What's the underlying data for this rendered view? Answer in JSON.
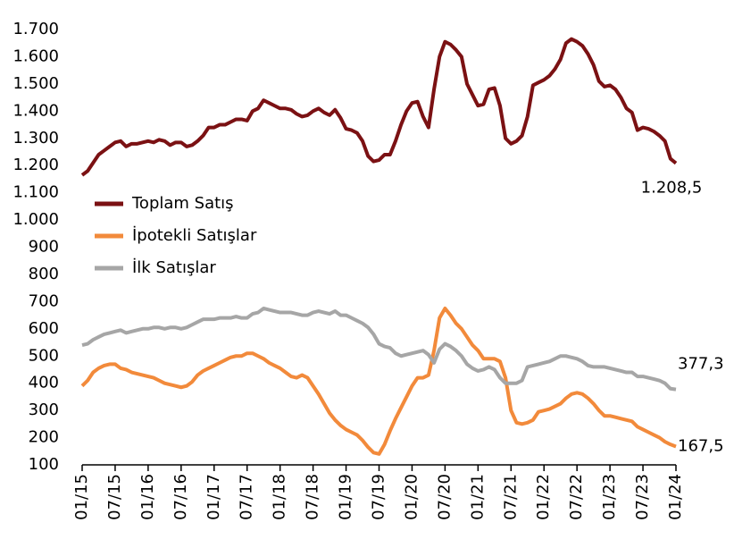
{
  "chart_data": {
    "type": "line",
    "categories": [
      "01/15",
      null,
      null,
      null,
      null,
      null,
      "07/15",
      null,
      null,
      null,
      null,
      null,
      "01/16",
      null,
      null,
      null,
      null,
      null,
      "07/16",
      null,
      null,
      null,
      null,
      null,
      "01/17",
      null,
      null,
      null,
      null,
      null,
      "07/17",
      null,
      null,
      null,
      null,
      null,
      "01/18",
      null,
      null,
      null,
      null,
      null,
      "07/18",
      null,
      null,
      null,
      null,
      null,
      "01/19",
      null,
      null,
      null,
      null,
      null,
      "07/19",
      null,
      null,
      null,
      null,
      null,
      "01/20",
      null,
      null,
      null,
      null,
      null,
      "07/20",
      null,
      null,
      null,
      null,
      null,
      "01/21",
      null,
      null,
      null,
      null,
      null,
      "07/21",
      null,
      null,
      null,
      null,
      null,
      "01/22",
      null,
      null,
      null,
      null,
      null,
      "07/22",
      null,
      null,
      null,
      null,
      null,
      "01/23",
      null,
      null,
      null,
      null,
      null,
      "07/23",
      null,
      null,
      null,
      null,
      null,
      "01/24"
    ],
    "series": [
      {
        "name": "Toplam Satış",
        "color": "#7b1113",
        "values": [
          1165,
          1180,
          1210,
          1240,
          1255,
          1270,
          1285,
          1290,
          1270,
          1280,
          1280,
          1285,
          1290,
          1285,
          1295,
          1290,
          1275,
          1285,
          1285,
          1270,
          1275,
          1290,
          1310,
          1340,
          1340,
          1350,
          1350,
          1360,
          1370,
          1370,
          1365,
          1400,
          1410,
          1440,
          1430,
          1420,
          1410,
          1410,
          1405,
          1390,
          1380,
          1385,
          1400,
          1410,
          1395,
          1385,
          1405,
          1375,
          1335,
          1330,
          1320,
          1290,
          1235,
          1215,
          1220,
          1240,
          1240,
          1290,
          1350,
          1400,
          1430,
          1435,
          1380,
          1340,
          1480,
          1600,
          1655,
          1645,
          1625,
          1600,
          1500,
          1460,
          1420,
          1425,
          1480,
          1485,
          1420,
          1300,
          1280,
          1290,
          1310,
          1380,
          1495,
          1505,
          1515,
          1530,
          1555,
          1590,
          1650,
          1665,
          1655,
          1640,
          1610,
          1570,
          1510,
          1490,
          1495,
          1480,
          1450,
          1410,
          1395,
          1330,
          1340,
          1335,
          1325,
          1310,
          1290,
          1225,
          1208.5
        ],
        "value_labels": {
          "108": "1.208,5"
        }
      },
      {
        "name": "İpotekli Satışlar",
        "color": "#f28a3b",
        "values": [
          390,
          410,
          440,
          455,
          465,
          470,
          470,
          455,
          450,
          440,
          435,
          430,
          425,
          420,
          410,
          400,
          395,
          390,
          385,
          390,
          405,
          430,
          445,
          455,
          465,
          475,
          485,
          495,
          500,
          500,
          510,
          510,
          500,
          490,
          475,
          465,
          455,
          440,
          425,
          420,
          430,
          420,
          390,
          360,
          325,
          290,
          265,
          245,
          230,
          220,
          210,
          190,
          165,
          145,
          140,
          175,
          225,
          270,
          310,
          350,
          390,
          420,
          420,
          430,
          520,
          640,
          675,
          650,
          620,
          600,
          570,
          540,
          520,
          490,
          490,
          490,
          480,
          420,
          300,
          255,
          250,
          255,
          265,
          295,
          300,
          305,
          315,
          325,
          345,
          360,
          365,
          360,
          345,
          325,
          300,
          280,
          280,
          275,
          270,
          265,
          260,
          240,
          230,
          220,
          210,
          200,
          185,
          175,
          167.5
        ],
        "value_labels": {
          "108": "167,5"
        }
      },
      {
        "name": "İlk Satışlar",
        "color": "#a6a6a6",
        "values": [
          540,
          545,
          560,
          570,
          580,
          585,
          590,
          595,
          585,
          590,
          595,
          600,
          600,
          605,
          605,
          600,
          605,
          605,
          600,
          605,
          615,
          625,
          635,
          635,
          635,
          640,
          640,
          640,
          645,
          640,
          640,
          655,
          660,
          675,
          670,
          665,
          660,
          660,
          660,
          655,
          650,
          650,
          660,
          665,
          660,
          655,
          665,
          650,
          650,
          640,
          630,
          620,
          605,
          580,
          545,
          535,
          530,
          510,
          500,
          505,
          510,
          515,
          520,
          505,
          475,
          525,
          545,
          535,
          520,
          500,
          470,
          455,
          445,
          450,
          460,
          450,
          420,
          400,
          400,
          400,
          410,
          460,
          465,
          470,
          475,
          480,
          490,
          500,
          500,
          495,
          490,
          480,
          465,
          460,
          460,
          460,
          455,
          450,
          445,
          440,
          440,
          425,
          425,
          420,
          415,
          410,
          400,
          380,
          377.3
        ],
        "value_labels": {
          "108": "377,3"
        }
      }
    ],
    "ylim": [
      100,
      1700
    ],
    "yticks": [
      100,
      200,
      300,
      400,
      500,
      600,
      700,
      800,
      900,
      {
        "value": 1000,
        "label": "1.000"
      },
      {
        "value": 1100,
        "label": "1.100"
      },
      {
        "value": 1200,
        "label": "1.200"
      },
      {
        "value": 1300,
        "label": "1.300"
      },
      {
        "value": 1400,
        "label": "1.400"
      },
      {
        "value": 1500,
        "label": "1.500"
      },
      {
        "value": 1600,
        "label": "1.600"
      },
      {
        "value": 1700,
        "label": "1.700"
      }
    ],
    "grid": false,
    "legend": "upper left"
  }
}
